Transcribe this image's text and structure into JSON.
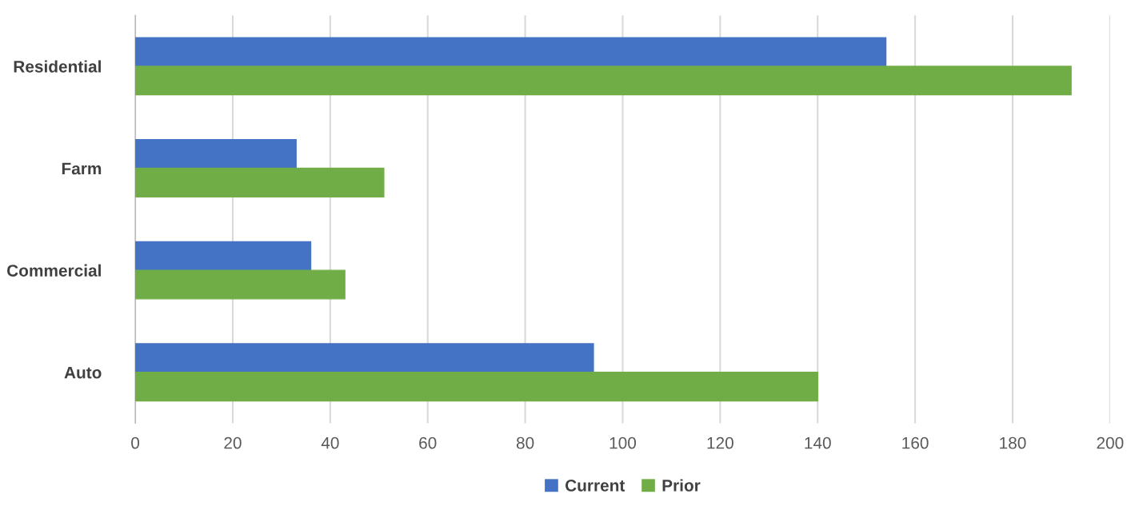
{
  "chart_data": {
    "type": "bar",
    "orientation": "horizontal",
    "categories": [
      "Residential",
      "Farm",
      "Commercial",
      "Auto"
    ],
    "series": [
      {
        "name": "Current",
        "color": "#4472c4",
        "values": [
          154,
          33,
          36,
          94
        ]
      },
      {
        "name": "Prior",
        "color": "#70ad47",
        "values": [
          192,
          51,
          43,
          140
        ]
      }
    ],
    "xlim": [
      0,
      200
    ],
    "xticks": [
      0,
      20,
      40,
      60,
      80,
      100,
      120,
      140,
      160,
      180,
      200
    ],
    "grid": "x",
    "legend": "bottom"
  }
}
